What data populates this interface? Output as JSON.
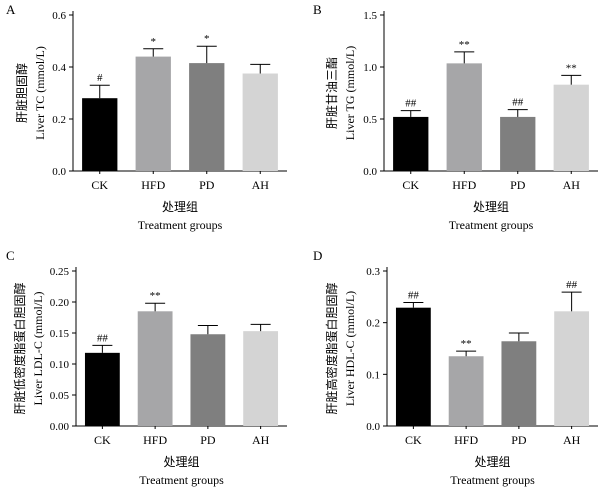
{
  "chart_data": [
    {
      "type": "bar",
      "panel": "A",
      "ylabel_cn": "肝脏胆固醇",
      "ylabel_en": "Liver TC (mmol/L)",
      "xlabel_cn": "处理组",
      "xlabel_en": "Treatment groups",
      "categories": [
        "CK",
        "HFD",
        "PD",
        "AH"
      ],
      "values": [
        0.28,
        0.44,
        0.415,
        0.375
      ],
      "errors": [
        0.05,
        0.03,
        0.065,
        0.035
      ],
      "significance": [
        "#",
        "*",
        "*",
        ""
      ],
      "colors": [
        "#000000",
        "#a6a6a8",
        "#7f7f7f",
        "#d4d4d4"
      ],
      "ylim": [
        0.0,
        0.6
      ],
      "yticks": [
        "0.0",
        "0.2",
        "0.4",
        "0.6"
      ]
    },
    {
      "type": "bar",
      "panel": "B",
      "ylabel_cn": "肝脏甘油三酯",
      "ylabel_en": "Liver TG (mmol/L)",
      "xlabel_cn": "处理组",
      "xlabel_en": "Treatment groups",
      "categories": [
        "CK",
        "HFD",
        "PD",
        "AH"
      ],
      "values": [
        0.52,
        1.035,
        0.52,
        0.83
      ],
      "errors": [
        0.06,
        0.11,
        0.07,
        0.09
      ],
      "significance": [
        "##",
        "**",
        "##",
        "**"
      ],
      "colors": [
        "#000000",
        "#a6a6a8",
        "#7f7f7f",
        "#d4d4d4"
      ],
      "ylim": [
        0.0,
        1.5
      ],
      "yticks": [
        "0.0",
        "0.5",
        "1.0",
        "1.5"
      ]
    },
    {
      "type": "bar",
      "panel": "C",
      "ylabel_cn": "肝脏低密度脂蛋白胆固醇",
      "ylabel_en": "Liver LDL-C (mmol/L)",
      "xlabel_cn": "处理组",
      "xlabel_en": "Treatment groups",
      "categories": [
        "CK",
        "HFD",
        "PD",
        "AH"
      ],
      "values": [
        0.118,
        0.185,
        0.148,
        0.153
      ],
      "errors": [
        0.012,
        0.013,
        0.014,
        0.011
      ],
      "significance": [
        "##",
        "**",
        "",
        ""
      ],
      "colors": [
        "#000000",
        "#a6a6a8",
        "#7f7f7f",
        "#d4d4d4"
      ],
      "ylim": [
        0.0,
        0.25
      ],
      "yticks": [
        "0.00",
        "0.05",
        "0.10",
        "0.15",
        "0.20",
        "0.25"
      ]
    },
    {
      "type": "bar",
      "panel": "D",
      "ylabel_cn": "肝脏高密度脂蛋白胆固醇",
      "ylabel_en": "Liver HDL-C (mmol/L)",
      "xlabel_cn": "处理组",
      "xlabel_en": "Treatment groups",
      "categories": [
        "CK",
        "HFD",
        "PD",
        "AH"
      ],
      "values": [
        0.229,
        0.135,
        0.164,
        0.222
      ],
      "errors": [
        0.01,
        0.01,
        0.016,
        0.037
      ],
      "significance": [
        "##",
        "**",
        "",
        "##"
      ],
      "colors": [
        "#000000",
        "#a6a6a8",
        "#7f7f7f",
        "#d4d4d4"
      ],
      "ylim": [
        0.0,
        0.3
      ],
      "yticks": [
        "0.0",
        "0.1",
        "0.2",
        "0.3"
      ]
    }
  ]
}
